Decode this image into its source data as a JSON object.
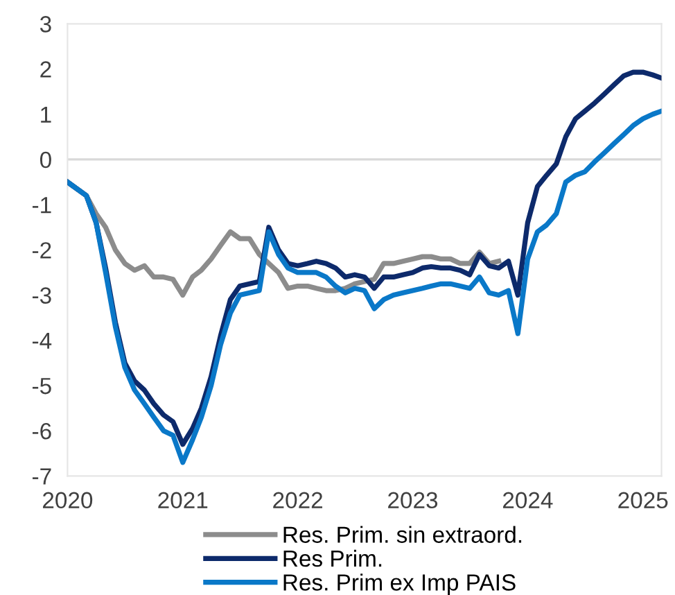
{
  "chart_data": {
    "type": "line",
    "x": [
      "2020-01",
      "2020-03",
      "2020-04",
      "2020-05",
      "2020-06",
      "2020-07",
      "2020-08",
      "2020-09",
      "2020-10",
      "2020-11",
      "2020-12",
      "2021-01",
      "2021-02",
      "2021-03",
      "2021-04",
      "2021-05",
      "2021-06",
      "2021-07",
      "2021-08",
      "2021-09",
      "2021-10",
      "2021-11",
      "2021-12",
      "2022-01",
      "2022-02",
      "2022-03",
      "2022-04",
      "2022-05",
      "2022-06",
      "2022-07",
      "2022-08",
      "2022-09",
      "2022-10",
      "2022-11",
      "2022-12",
      "2023-01",
      "2023-02",
      "2023-03",
      "2023-04",
      "2023-05",
      "2023-06",
      "2023-07",
      "2023-08",
      "2023-09",
      "2023-10",
      "2023-11",
      "2023-12",
      "2024-01",
      "2024-02",
      "2024-03",
      "2024-04",
      "2024-05",
      "2024-06",
      "2024-07",
      "2024-08",
      "2024-09",
      "2024-10",
      "2024-11",
      "2024-12",
      "2025-01",
      "2025-02",
      "2025-03"
    ],
    "series": [
      {
        "name": "Res. Prim. sin extraord.",
        "color": "#8c8c8c",
        "x": [
          "2020-01",
          "2020-03",
          "2020-04",
          "2020-05",
          "2020-06",
          "2020-07",
          "2020-08",
          "2020-09",
          "2020-10",
          "2020-11",
          "2020-12",
          "2021-01",
          "2021-02",
          "2021-03",
          "2021-04",
          "2021-05",
          "2021-06",
          "2021-07",
          "2021-08",
          "2021-09",
          "2021-10",
          "2021-11",
          "2021-12",
          "2022-01",
          "2022-02",
          "2022-03",
          "2022-04",
          "2022-05",
          "2022-06",
          "2022-07",
          "2022-08",
          "2022-09",
          "2022-10",
          "2022-11",
          "2022-12",
          "2023-01",
          "2023-02",
          "2023-03",
          "2023-04",
          "2023-05",
          "2023-06",
          "2023-07",
          "2023-08",
          "2023-09",
          "2023-10"
        ],
        "values": [
          -0.5,
          -0.8,
          -1.2,
          -1.5,
          -2.0,
          -2.3,
          -2.45,
          -2.35,
          -2.6,
          -2.6,
          -2.65,
          -3.0,
          -2.6,
          -2.45,
          -2.2,
          -1.9,
          -1.6,
          -1.75,
          -1.75,
          -2.1,
          -2.3,
          -2.5,
          -2.85,
          -2.8,
          -2.8,
          -2.85,
          -2.9,
          -2.9,
          -2.85,
          -2.75,
          -2.7,
          -2.65,
          -2.3,
          -2.3,
          -2.25,
          -2.2,
          -2.15,
          -2.15,
          -2.2,
          -2.2,
          -2.3,
          -2.3,
          -2.05,
          -2.3,
          -2.25
        ]
      },
      {
        "name": "Res Prim.",
        "color": "#0d2a6b",
        "values": [
          -0.5,
          -0.8,
          -1.4,
          -2.4,
          -3.6,
          -4.5,
          -4.9,
          -5.1,
          -5.4,
          -5.65,
          -5.8,
          -6.3,
          -5.95,
          -5.5,
          -4.8,
          -3.9,
          -3.1,
          -2.8,
          -2.75,
          -2.7,
          -1.5,
          -2.0,
          -2.3,
          -2.35,
          -2.3,
          -2.25,
          -2.3,
          -2.4,
          -2.6,
          -2.55,
          -2.6,
          -2.85,
          -2.6,
          -2.6,
          -2.55,
          -2.5,
          -2.4,
          -2.37,
          -2.4,
          -2.4,
          -2.45,
          -2.55,
          -2.1,
          -2.35,
          -2.4,
          -2.25,
          -3.0,
          -1.4,
          -0.6,
          -0.35,
          -0.1,
          0.5,
          0.9,
          1.07,
          1.25,
          1.45,
          1.65,
          1.85,
          1.93,
          1.93,
          1.87,
          1.8
        ]
      },
      {
        "name": "Res. Prim ex Imp PAIS",
        "color": "#0a78c8",
        "values": [
          -0.5,
          -0.8,
          -1.4,
          -2.5,
          -3.7,
          -4.6,
          -5.1,
          -5.4,
          -5.7,
          -6.0,
          -6.1,
          -6.7,
          -6.2,
          -5.7,
          -5.0,
          -4.1,
          -3.4,
          -3.0,
          -2.95,
          -2.9,
          -1.6,
          -2.1,
          -2.4,
          -2.5,
          -2.5,
          -2.5,
          -2.6,
          -2.8,
          -2.95,
          -2.85,
          -2.9,
          -3.3,
          -3.1,
          -3.0,
          -2.95,
          -2.9,
          -2.85,
          -2.8,
          -2.75,
          -2.75,
          -2.8,
          -2.85,
          -2.6,
          -2.95,
          -3.0,
          -2.9,
          -3.85,
          -2.2,
          -1.6,
          -1.45,
          -1.2,
          -0.5,
          -0.35,
          -0.27,
          -0.05,
          0.15,
          0.35,
          0.55,
          0.75,
          0.9,
          1.0,
          1.07
        ]
      }
    ],
    "xlim": [
      "2020-01",
      "2025-03"
    ],
    "xticks": [
      {
        "value": "2020-01",
        "label": "2020"
      },
      {
        "value": "2021-01",
        "label": "2021"
      },
      {
        "value": "2022-01",
        "label": "2022"
      },
      {
        "value": "2023-01",
        "label": "2023"
      },
      {
        "value": "2024-01",
        "label": "2024"
      },
      {
        "value": "2025-01",
        "label": "2025"
      }
    ],
    "ylim": [
      -7,
      3
    ],
    "yticks": [
      -7,
      -6,
      -5,
      -4,
      -3,
      -2,
      -1,
      0,
      1,
      2,
      3
    ],
    "ref_lines": [
      {
        "axis": "y",
        "value": 0,
        "color": "#d9d9d9"
      }
    ],
    "grid": false,
    "legend": "bottom",
    "line_style": "solid",
    "marker": "none"
  }
}
